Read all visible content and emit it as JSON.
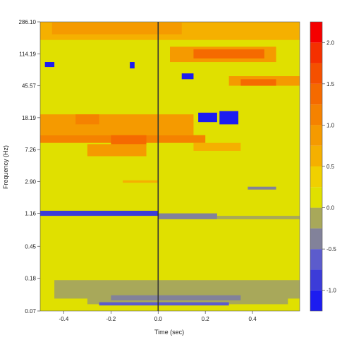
{
  "chart_data": {
    "type": "heatmap",
    "title": "",
    "xlabel": "Time (sec)",
    "ylabel": "Frequency (Hz)",
    "xlim": [
      -0.5,
      0.6
    ],
    "ylim_log_hz": [
      0.07,
      286.1
    ],
    "y_scale": "log",
    "x_ticks": [
      -0.4,
      -0.2,
      0.0,
      0.2,
      0.4
    ],
    "x_tick_labels": [
      "-0.4",
      "-0.2",
      "0.0",
      "0.2",
      "0.4"
    ],
    "y_ticks": [
      0.07,
      0.18,
      0.45,
      1.16,
      2.9,
      7.26,
      18.19,
      45.57,
      114.19,
      286.1
    ],
    "y_tick_labels": [
      "0.07",
      "0.18",
      "0.45",
      "1.16",
      "2.90",
      "7.26",
      "18.19",
      "45.57",
      "114.19",
      "286.10"
    ],
    "vertical_line_at_time": 0.0,
    "colorbar": {
      "min": -1.25,
      "max": 2.25,
      "ticks": [
        -1.0,
        -0.5,
        0.0,
        0.5,
        1.0,
        1.5,
        2.0
      ],
      "tick_labels": [
        "-1.0",
        "-0.5",
        "0.0",
        "0.5",
        "1.0",
        "1.5",
        "2.0"
      ],
      "levels": [
        {
          "from": -1.25,
          "to": -1.0,
          "color": "#1c1cf0"
        },
        {
          "from": -1.0,
          "to": -0.75,
          "color": "#3c3cd8"
        },
        {
          "from": -0.75,
          "to": -0.5,
          "color": "#5c5ccc"
        },
        {
          "from": -0.5,
          "to": -0.25,
          "color": "#82829a"
        },
        {
          "from": -0.25,
          "to": 0.0,
          "color": "#a8a85a"
        },
        {
          "from": 0.0,
          "to": 0.25,
          "color": "#e0e000"
        },
        {
          "from": 0.25,
          "to": 0.5,
          "color": "#f0d000"
        },
        {
          "from": 0.5,
          "to": 0.75,
          "color": "#f5b000"
        },
        {
          "from": 0.75,
          "to": 1.0,
          "color": "#f59a00"
        },
        {
          "from": 1.0,
          "to": 1.25,
          "color": "#f58200"
        },
        {
          "from": 1.25,
          "to": 1.5,
          "color": "#f56a00"
        },
        {
          "from": 1.5,
          "to": 1.75,
          "color": "#f55000"
        },
        {
          "from": 1.75,
          "to": 2.0,
          "color": "#f53000"
        },
        {
          "from": 2.0,
          "to": 2.25,
          "color": "#f50000"
        }
      ]
    },
    "background_value": 0.1,
    "regions": [
      {
        "t0": -0.5,
        "t1": 0.6,
        "f0": 170.0,
        "f1": 286.1,
        "value": 0.6
      },
      {
        "t0": -0.45,
        "t1": 0.1,
        "f0": 200.0,
        "f1": 280.0,
        "value": 0.8
      },
      {
        "t0": 0.05,
        "t1": 0.5,
        "f0": 90.0,
        "f1": 140.0,
        "value": 0.9
      },
      {
        "t0": 0.15,
        "t1": 0.45,
        "f0": 100.0,
        "f1": 130.0,
        "value": 1.3
      },
      {
        "t0": 0.3,
        "t1": 0.6,
        "f0": 45.57,
        "f1": 60.0,
        "value": 0.9
      },
      {
        "t0": 0.35,
        "t1": 0.5,
        "f0": 45.57,
        "f1": 55.0,
        "value": 1.3
      },
      {
        "t0": -0.5,
        "t1": 0.15,
        "f0": 11.0,
        "f1": 20.0,
        "value": 0.8
      },
      {
        "t0": -0.35,
        "t1": -0.25,
        "f0": 15.0,
        "f1": 20.0,
        "value": 1.1
      },
      {
        "t0": -0.5,
        "t1": 0.2,
        "f0": 8.8,
        "f1": 11.0,
        "value": 1.1
      },
      {
        "t0": -0.2,
        "t1": -0.05,
        "f0": 8.0,
        "f1": 11.0,
        "value": 1.4
      },
      {
        "t0": -0.3,
        "t1": -0.05,
        "f0": 6.0,
        "f1": 8.5,
        "value": 0.9
      },
      {
        "t0": 0.15,
        "t1": 0.35,
        "f0": 7.0,
        "f1": 8.8,
        "value": 0.6
      },
      {
        "t0": -0.15,
        "t1": 0.0,
        "f0": 2.8,
        "f1": 3.0,
        "value": 0.6
      },
      {
        "t0": 0.38,
        "t1": 0.5,
        "f0": 2.3,
        "f1": 2.5,
        "value": -0.4
      },
      {
        "t0": 0.1,
        "t1": 0.15,
        "f0": 55.0,
        "f1": 65.0,
        "value": -1.1
      },
      {
        "t0": 0.17,
        "t1": 0.25,
        "f0": 16.0,
        "f1": 21.0,
        "value": -1.1
      },
      {
        "t0": 0.26,
        "t1": 0.34,
        "f0": 15.0,
        "f1": 22.0,
        "value": -1.1
      },
      {
        "t0": -0.12,
        "t1": -0.1,
        "f0": 75.0,
        "f1": 90.0,
        "value": -1.1
      },
      {
        "t0": -0.48,
        "t1": -0.44,
        "f0": 78.0,
        "f1": 90.0,
        "value": -1.1
      },
      {
        "t0": -0.5,
        "t1": 0.0,
        "f0": 1.08,
        "f1": 1.25,
        "value": -1.0
      },
      {
        "t0": 0.0,
        "t1": 0.25,
        "f0": 0.98,
        "f1": 1.16,
        "value": -0.4
      },
      {
        "t0": 0.25,
        "t1": 0.6,
        "f0": 0.98,
        "f1": 1.08,
        "value": -0.2
      },
      {
        "t0": -0.44,
        "t1": 0.6,
        "f0": 0.1,
        "f1": 0.17,
        "value": -0.2
      },
      {
        "t0": -0.3,
        "t1": 0.55,
        "f0": 0.085,
        "f1": 0.15,
        "value": -0.2
      },
      {
        "t0": -0.2,
        "t1": 0.35,
        "f0": 0.095,
        "f1": 0.11,
        "value": -0.5
      },
      {
        "t0": -0.25,
        "t1": 0.3,
        "f0": 0.082,
        "f1": 0.09,
        "value": -0.7
      }
    ]
  }
}
